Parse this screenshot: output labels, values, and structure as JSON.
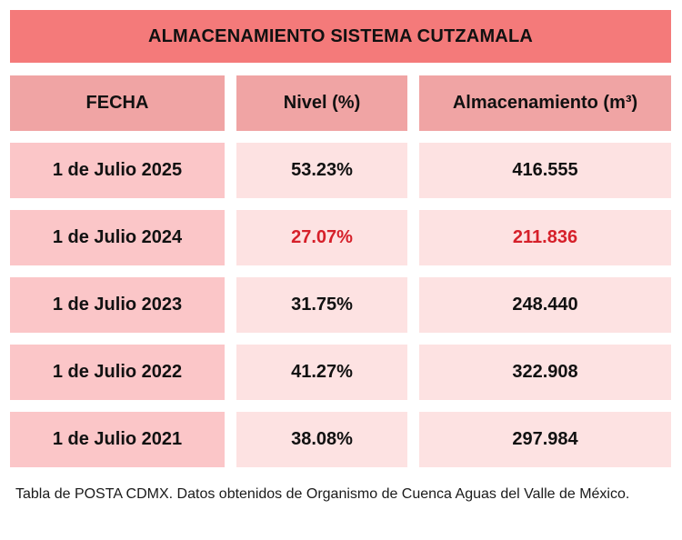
{
  "title": "ALMACENAMIENTO SISTEMA CUTZAMALA",
  "headers": [
    "FECHA",
    "Nivel (%)",
    "Almacenamiento (m³)"
  ],
  "rows": [
    {
      "fecha": "1 de Julio 2025",
      "nivel": "53.23%",
      "almacenamiento": "416.555",
      "highlight": false
    },
    {
      "fecha": "1 de Julio 2024",
      "nivel": "27.07%",
      "almacenamiento": "211.836",
      "highlight": true
    },
    {
      "fecha": "1 de Julio 2023",
      "nivel": "31.75%",
      "almacenamiento": "248.440",
      "highlight": false
    },
    {
      "fecha": "1 de Julio 2022",
      "nivel": "41.27%",
      "almacenamiento": "322.908",
      "highlight": false
    },
    {
      "fecha": "1 de Julio 2021",
      "nivel": "38.08%",
      "almacenamiento": "297.984",
      "highlight": false
    }
  ],
  "colors": {
    "title_bg": "#f47a7a",
    "header_bg": "#f0a4a4",
    "date_cell_bg": "#fbc6c8",
    "value_cell_bg": "#fde2e2",
    "highlight_text": "#d6202a"
  },
  "caption": "Tabla de POSTA CDMX. Datos obtenidos de Organismo de Cuenca Aguas del Valle de México."
}
